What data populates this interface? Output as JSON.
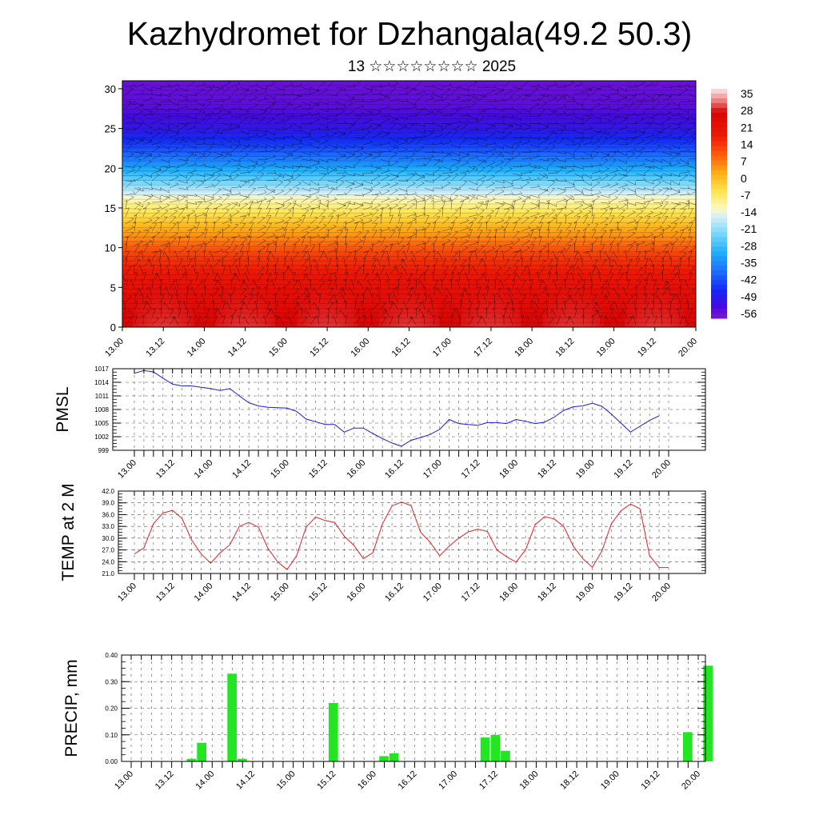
{
  "header": {
    "title": "Kazhydromet for Dzhangala(49.2 50.3)",
    "subtitle": "13 ☆☆☆☆☆☆☆☆ 2025"
  },
  "colors": {
    "pressure_line": "#1a1ae6",
    "temperature_line": "#e62020",
    "precip_bar": "#22e622",
    "axes": "#000000",
    "grid": "#555555"
  },
  "chart_data": [
    {
      "type": "heatmap",
      "title": "",
      "xlabel": "",
      "ylabel": "",
      "x_tick_labels": [
        "13.00",
        "13.12",
        "14.00",
        "14.12",
        "15.00",
        "15.12",
        "16.00",
        "16.12",
        "17.00",
        "17.12",
        "18.00",
        "18.12",
        "19.00",
        "19.12",
        "20.00"
      ],
      "y_ticks": [
        0,
        5,
        10,
        15,
        20,
        25,
        30
      ],
      "ylim": [
        0,
        31
      ],
      "colorbar_labels": [
        "35",
        "28",
        "21",
        "14",
        "7",
        "0",
        "-7",
        "-14",
        "-21",
        "-28",
        "-35",
        "-42",
        "-49",
        "-56"
      ],
      "colorbar_range": [
        -60,
        38
      ],
      "temperature_profile": [
        {
          "level": 0,
          "value": 28
        },
        {
          "level": 5,
          "value": 22
        },
        {
          "level": 9,
          "value": 14
        },
        {
          "level": 13,
          "value": 0
        },
        {
          "level": 16,
          "value": -12
        },
        {
          "level": 19,
          "value": -28
        },
        {
          "level": 22,
          "value": -42
        },
        {
          "level": 25,
          "value": -52
        },
        {
          "level": 28,
          "value": -57
        },
        {
          "level": 31,
          "value": -58
        }
      ],
      "warm_surface_peaks": [
        {
          "time": 13.5,
          "value": 36
        },
        {
          "time": 14.5,
          "value": 34
        },
        {
          "time": 15.5,
          "value": 34
        },
        {
          "time": 16.5,
          "value": 38
        },
        {
          "time": 17.5,
          "value": 31
        },
        {
          "time": 18.5,
          "value": 33
        },
        {
          "time": 19.5,
          "value": 36
        }
      ],
      "overlay": "wind barbs"
    },
    {
      "type": "line",
      "ylabel": "PMSL",
      "ylim": [
        999,
        1017
      ],
      "y_tick_labels": [
        "1017",
        "1014",
        "1011",
        "1008",
        "1005",
        "1002",
        "999"
      ],
      "x_tick_labels": [
        "13.00",
        "13.12",
        "14.00",
        "14.12",
        "15.00",
        "15.12",
        "16.00",
        "16.12",
        "17.00",
        "17.12",
        "18.00",
        "18.12",
        "19.00",
        "19.12",
        "20.00"
      ],
      "x_step_hours": 3,
      "series": [
        {
          "values": [
            1016.0,
            1016.6,
            1016.3,
            1014.9,
            1013.6,
            1013.2,
            1013.2,
            1012.9,
            1012.6,
            1012.2,
            1012.6,
            1011.0,
            1009.5,
            1008.8,
            1008.5,
            1008.4,
            1008.3,
            1007.6,
            1005.9,
            1005.3,
            1004.7,
            1004.7,
            1003.0,
            1003.9,
            1003.9,
            1002.7,
            1001.6,
            1000.6,
            999.9,
            1001.2,
            1001.8,
            1002.5,
            1003.6,
            1005.8,
            1004.9,
            1004.7,
            1004.5,
            1005.1,
            1005.1,
            1004.9,
            1005.8,
            1005.4,
            1004.9,
            1005.2,
            1006.3,
            1007.8,
            1008.6,
            1008.8,
            1009.4,
            1008.7,
            1007.0,
            1005.0,
            1003.0,
            1004.3,
            1005.6,
            1006.6
          ]
        }
      ]
    },
    {
      "type": "line",
      "ylabel": "TEMP at 2 M",
      "ylim": [
        21,
        42
      ],
      "y_tick_labels": [
        "42.0",
        "39.0",
        "36.0",
        "33.0",
        "30.0",
        "27.0",
        "24.0",
        "21.0"
      ],
      "x_tick_labels": [
        "13.00",
        "13.12",
        "14.00",
        "14.12",
        "15.00",
        "15.12",
        "16.00",
        "16.12",
        "17.00",
        "17.12",
        "18.00",
        "18.12",
        "19.00",
        "19.12",
        "20.00"
      ],
      "x_step_hours": 3,
      "series": [
        {
          "values": [
            26.0,
            27.5,
            33.7,
            36.4,
            37.1,
            35.0,
            29.5,
            26.0,
            23.6,
            26.3,
            28.3,
            33.0,
            34.0,
            32.8,
            27.4,
            24.0,
            22.0,
            25.5,
            32.8,
            35.4,
            34.5,
            34.0,
            30.5,
            28.2,
            24.8,
            26.3,
            33.6,
            38.2,
            39.2,
            38.3,
            31.5,
            29.0,
            25.5,
            28.0,
            30.0,
            31.6,
            32.3,
            31.7,
            27.0,
            25.3,
            23.9,
            27.0,
            33.4,
            35.5,
            34.9,
            33.0,
            28.0,
            24.8,
            22.6,
            26.7,
            33.7,
            37.0,
            38.7,
            37.5,
            25.6,
            22.5,
            22.5
          ]
        }
      ]
    },
    {
      "type": "bar",
      "ylabel": "PRECIP, mm",
      "ylim": [
        0,
        0.4
      ],
      "y_tick_labels": [
        "0.40",
        "0.30",
        "0.20",
        "0.10",
        "0.00"
      ],
      "x_tick_labels": [
        "13.00",
        "13.12",
        "14.00",
        "14.12",
        "15.00",
        "15.12",
        "16.00",
        "16.12",
        "17.00",
        "17.12",
        "18.00",
        "18.12",
        "19.00",
        "19.12",
        "20.00"
      ],
      "x_step_hours": 3,
      "series": [
        {
          "values": [
            0,
            0,
            0,
            0,
            0,
            0,
            0.01,
            0.07,
            0,
            0,
            0.33,
            0.01,
            0,
            0,
            0,
            0,
            0,
            0,
            0,
            0,
            0.22,
            0,
            0,
            0,
            0,
            0.02,
            0.03,
            0,
            0,
            0,
            0,
            0,
            0,
            0,
            0,
            0.09,
            0.1,
            0.04,
            0,
            0,
            0,
            0,
            0,
            0,
            0,
            0,
            0,
            0,
            0,
            0,
            0,
            0,
            0,
            0,
            0,
            0.11,
            0,
            0.36
          ]
        }
      ]
    }
  ]
}
